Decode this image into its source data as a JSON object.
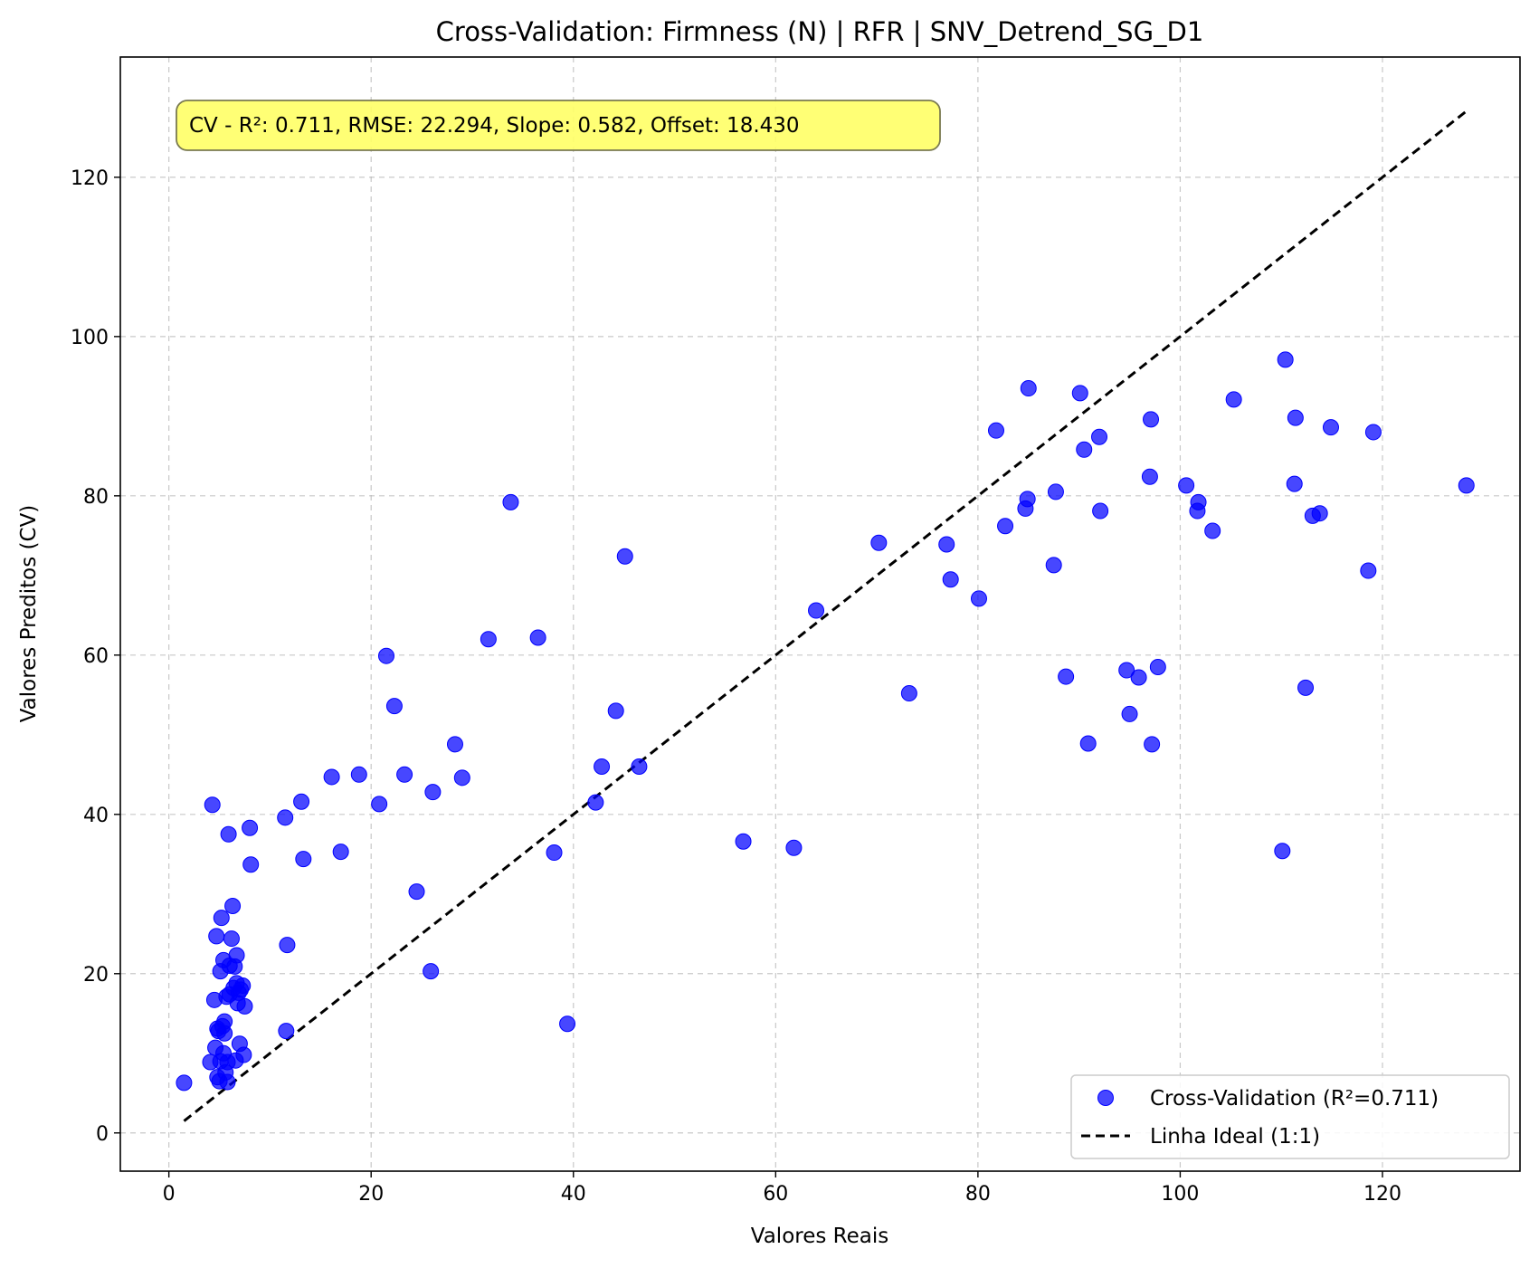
{
  "chart_data": {
    "type": "scatter",
    "title": "Cross-Validation: Firmness (N) | RFR | SNV_Detrend_SG_D1",
    "xlabel": "Valores Reais",
    "ylabel": "Valores Preditos (CV)",
    "xlim": [
      -4.8,
      133.6
    ],
    "ylim": [
      -4.8,
      135.1
    ],
    "xticks": [
      0,
      20,
      40,
      60,
      80,
      100,
      120
    ],
    "yticks": [
      0,
      20,
      40,
      60,
      80,
      100,
      120
    ],
    "xtick_labels": [
      "0",
      "20",
      "40",
      "60",
      "80",
      "100",
      "120"
    ],
    "ytick_labels": [
      "0",
      "20",
      "40",
      "60",
      "80",
      "100",
      "120"
    ],
    "grid": true,
    "legend_position": "bottom-right",
    "annotation": "CV - R²: 0.711, RMSE: 22.294, Slope: 0.582, Offset: 18.430",
    "annotation_position": "top-left",
    "annotation_color": "#ffff66",
    "series": [
      {
        "name": "Cross-Validation (R²=0.711)",
        "kind": "scatter",
        "color": "#0000ff",
        "points": [
          [
            1.5,
            6.3
          ],
          [
            4.1,
            8.9
          ],
          [
            4.3,
            41.2
          ],
          [
            4.5,
            16.7
          ],
          [
            4.6,
            10.7
          ],
          [
            4.7,
            24.7
          ],
          [
            4.8,
            13.1
          ],
          [
            4.8,
            7.0
          ],
          [
            4.9,
            12.8
          ],
          [
            5.0,
            6.5
          ],
          [
            5.1,
            9.0
          ],
          [
            5.1,
            20.3
          ],
          [
            5.2,
            27.0
          ],
          [
            5.3,
            13.4
          ],
          [
            5.4,
            21.7
          ],
          [
            5.4,
            10.0
          ],
          [
            5.5,
            14.0
          ],
          [
            5.5,
            12.5
          ],
          [
            5.6,
            7.6
          ],
          [
            5.7,
            17.1
          ],
          [
            5.8,
            6.4
          ],
          [
            5.8,
            8.9
          ],
          [
            5.9,
            37.5
          ],
          [
            6.0,
            21.0
          ],
          [
            6.0,
            17.4
          ],
          [
            6.2,
            24.4
          ],
          [
            6.3,
            28.5
          ],
          [
            6.4,
            18.2
          ],
          [
            6.5,
            20.9
          ],
          [
            6.6,
            9.1
          ],
          [
            6.7,
            22.3
          ],
          [
            6.7,
            18.8
          ],
          [
            6.8,
            16.3
          ],
          [
            6.9,
            17.6
          ],
          [
            7.0,
            11.2
          ],
          [
            7.1,
            18.0
          ],
          [
            7.3,
            18.5
          ],
          [
            7.4,
            9.8
          ],
          [
            7.5,
            15.9
          ],
          [
            8.0,
            38.3
          ],
          [
            8.1,
            33.7
          ],
          [
            11.5,
            39.6
          ],
          [
            11.6,
            12.8
          ],
          [
            11.7,
            23.6
          ],
          [
            13.1,
            41.6
          ],
          [
            13.3,
            34.4
          ],
          [
            16.1,
            44.7
          ],
          [
            17.0,
            35.3
          ],
          [
            18.8,
            45.0
          ],
          [
            20.8,
            41.3
          ],
          [
            21.5,
            59.9
          ],
          [
            22.3,
            53.6
          ],
          [
            23.3,
            45.0
          ],
          [
            24.5,
            30.3
          ],
          [
            25.9,
            20.3
          ],
          [
            26.1,
            42.8
          ],
          [
            28.3,
            48.8
          ],
          [
            29.0,
            44.6
          ],
          [
            31.6,
            62.0
          ],
          [
            33.8,
            79.2
          ],
          [
            36.5,
            62.2
          ],
          [
            38.1,
            35.2
          ],
          [
            39.4,
            13.7
          ],
          [
            42.2,
            41.5
          ],
          [
            42.8,
            46.0
          ],
          [
            44.2,
            53.0
          ],
          [
            45.1,
            72.4
          ],
          [
            46.5,
            46.0
          ],
          [
            56.8,
            36.6
          ],
          [
            61.8,
            35.8
          ],
          [
            64.0,
            65.6
          ],
          [
            70.2,
            74.1
          ],
          [
            73.2,
            55.2
          ],
          [
            76.9,
            73.9
          ],
          [
            77.3,
            69.5
          ],
          [
            80.1,
            67.1
          ],
          [
            81.8,
            88.2
          ],
          [
            82.7,
            76.2
          ],
          [
            84.7,
            78.4
          ],
          [
            84.9,
            79.6
          ],
          [
            85.0,
            93.5
          ],
          [
            87.5,
            71.3
          ],
          [
            87.7,
            80.5
          ],
          [
            88.7,
            57.3
          ],
          [
            90.1,
            92.9
          ],
          [
            90.5,
            85.8
          ],
          [
            90.9,
            48.9
          ],
          [
            92.0,
            87.4
          ],
          [
            92.1,
            78.1
          ],
          [
            94.7,
            58.1
          ],
          [
            95.0,
            52.6
          ],
          [
            95.9,
            57.2
          ],
          [
            97.0,
            82.4
          ],
          [
            97.1,
            89.6
          ],
          [
            97.2,
            48.8
          ],
          [
            97.8,
            58.5
          ],
          [
            100.6,
            81.3
          ],
          [
            101.7,
            78.1
          ],
          [
            101.8,
            79.2
          ],
          [
            103.2,
            75.6
          ],
          [
            105.3,
            92.1
          ],
          [
            110.1,
            35.4
          ],
          [
            110.4,
            97.1
          ],
          [
            111.3,
            81.5
          ],
          [
            111.4,
            89.8
          ],
          [
            112.4,
            55.9
          ],
          [
            113.1,
            77.5
          ],
          [
            113.8,
            77.8
          ],
          [
            114.9,
            88.6
          ],
          [
            118.6,
            70.6
          ],
          [
            119.1,
            88.0
          ],
          [
            128.3,
            81.3
          ]
        ]
      },
      {
        "name": "Linha Ideal (1:1)",
        "kind": "line",
        "color": "#000000",
        "x": [
          1.5,
          128.3
        ],
        "y": [
          1.5,
          128.3
        ]
      }
    ]
  }
}
